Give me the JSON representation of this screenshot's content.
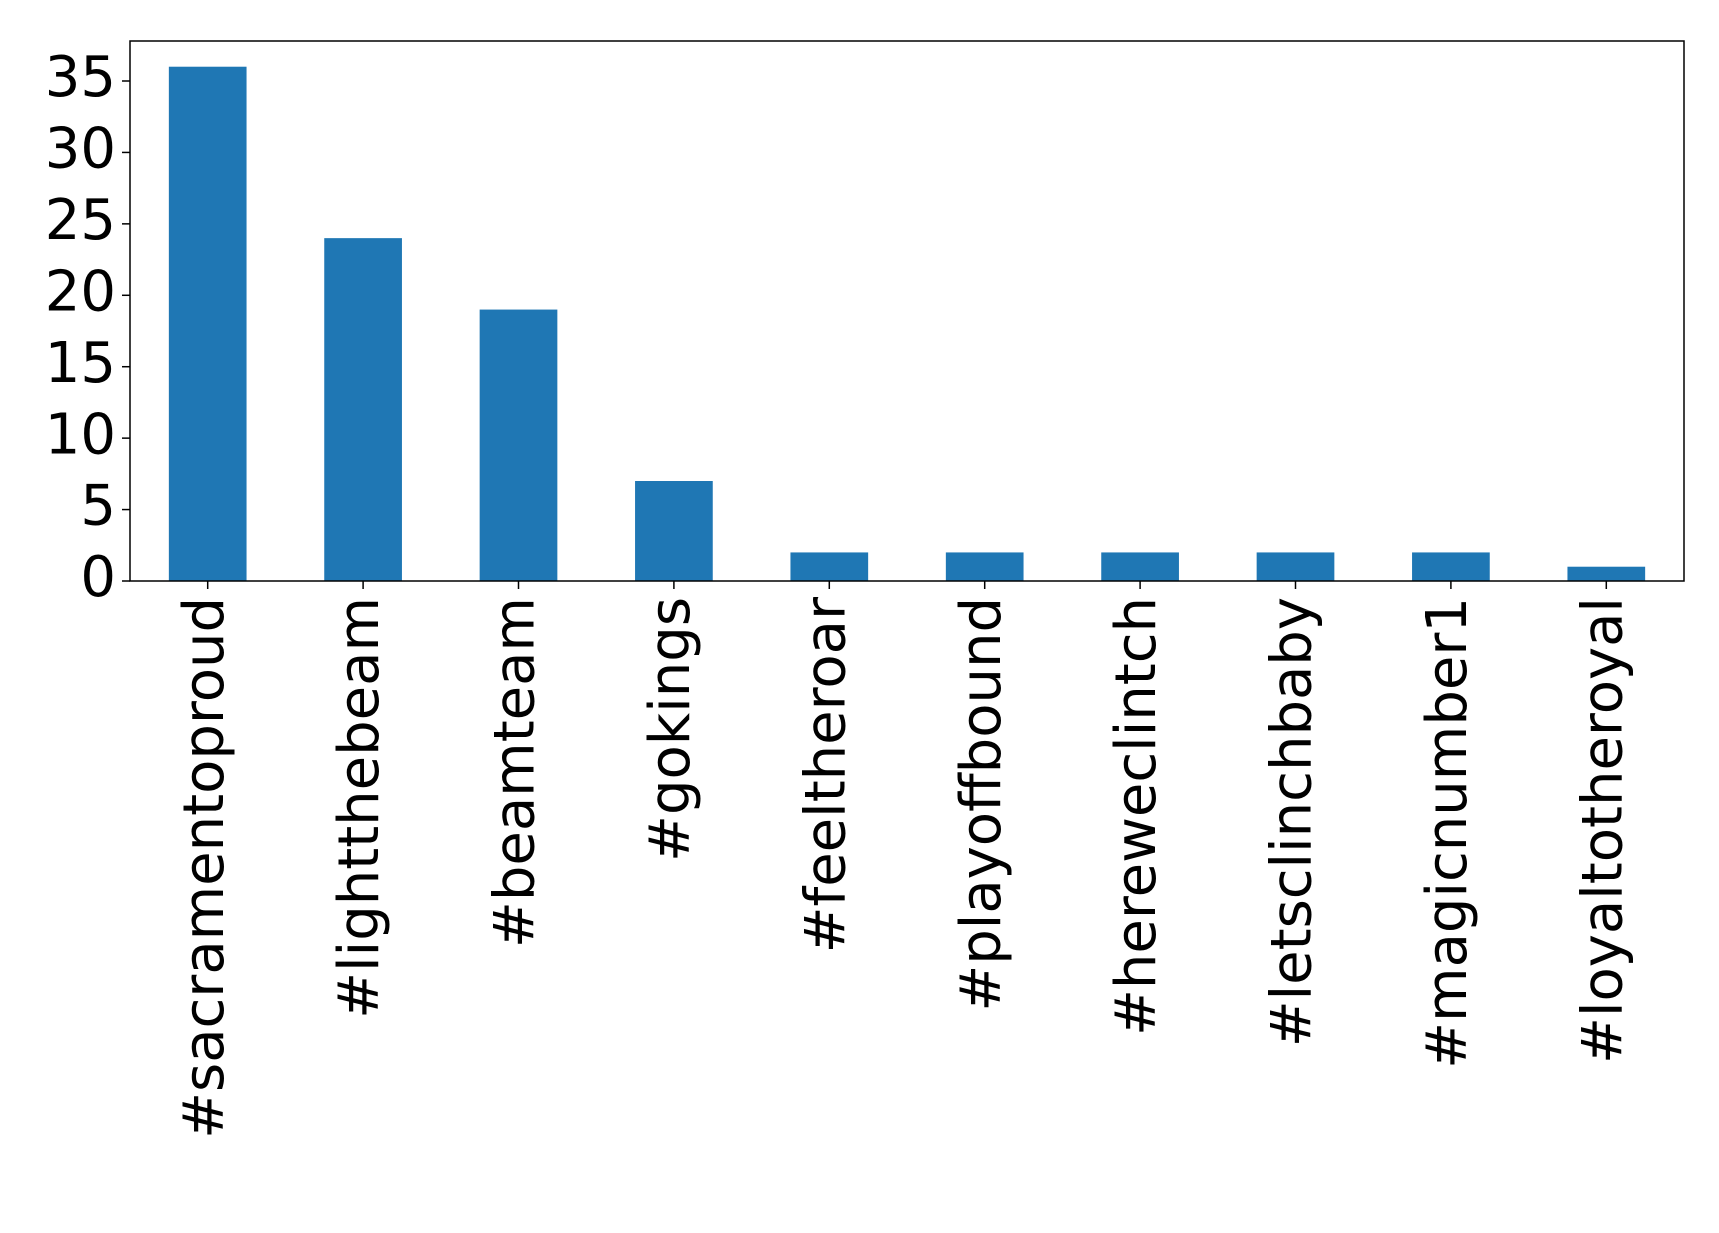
{
  "chart_data": {
    "type": "bar",
    "categories": [
      "#sacramentoproud",
      "#lightthebeam",
      "#beamteam",
      "#gokings",
      "#feeltheroar",
      "#playoffbound",
      "#hereweclintch",
      "#letsclinchbaby",
      "#magicnumber1",
      "#loyaltotheroyal"
    ],
    "values": [
      36,
      24,
      19,
      7,
      2,
      2,
      2,
      2,
      2,
      1
    ],
    "color": "#1f77b4",
    "ylim": [
      0,
      37.8
    ],
    "yticks": [
      0,
      5,
      10,
      15,
      20,
      25,
      30,
      35
    ],
    "grid": false
  }
}
